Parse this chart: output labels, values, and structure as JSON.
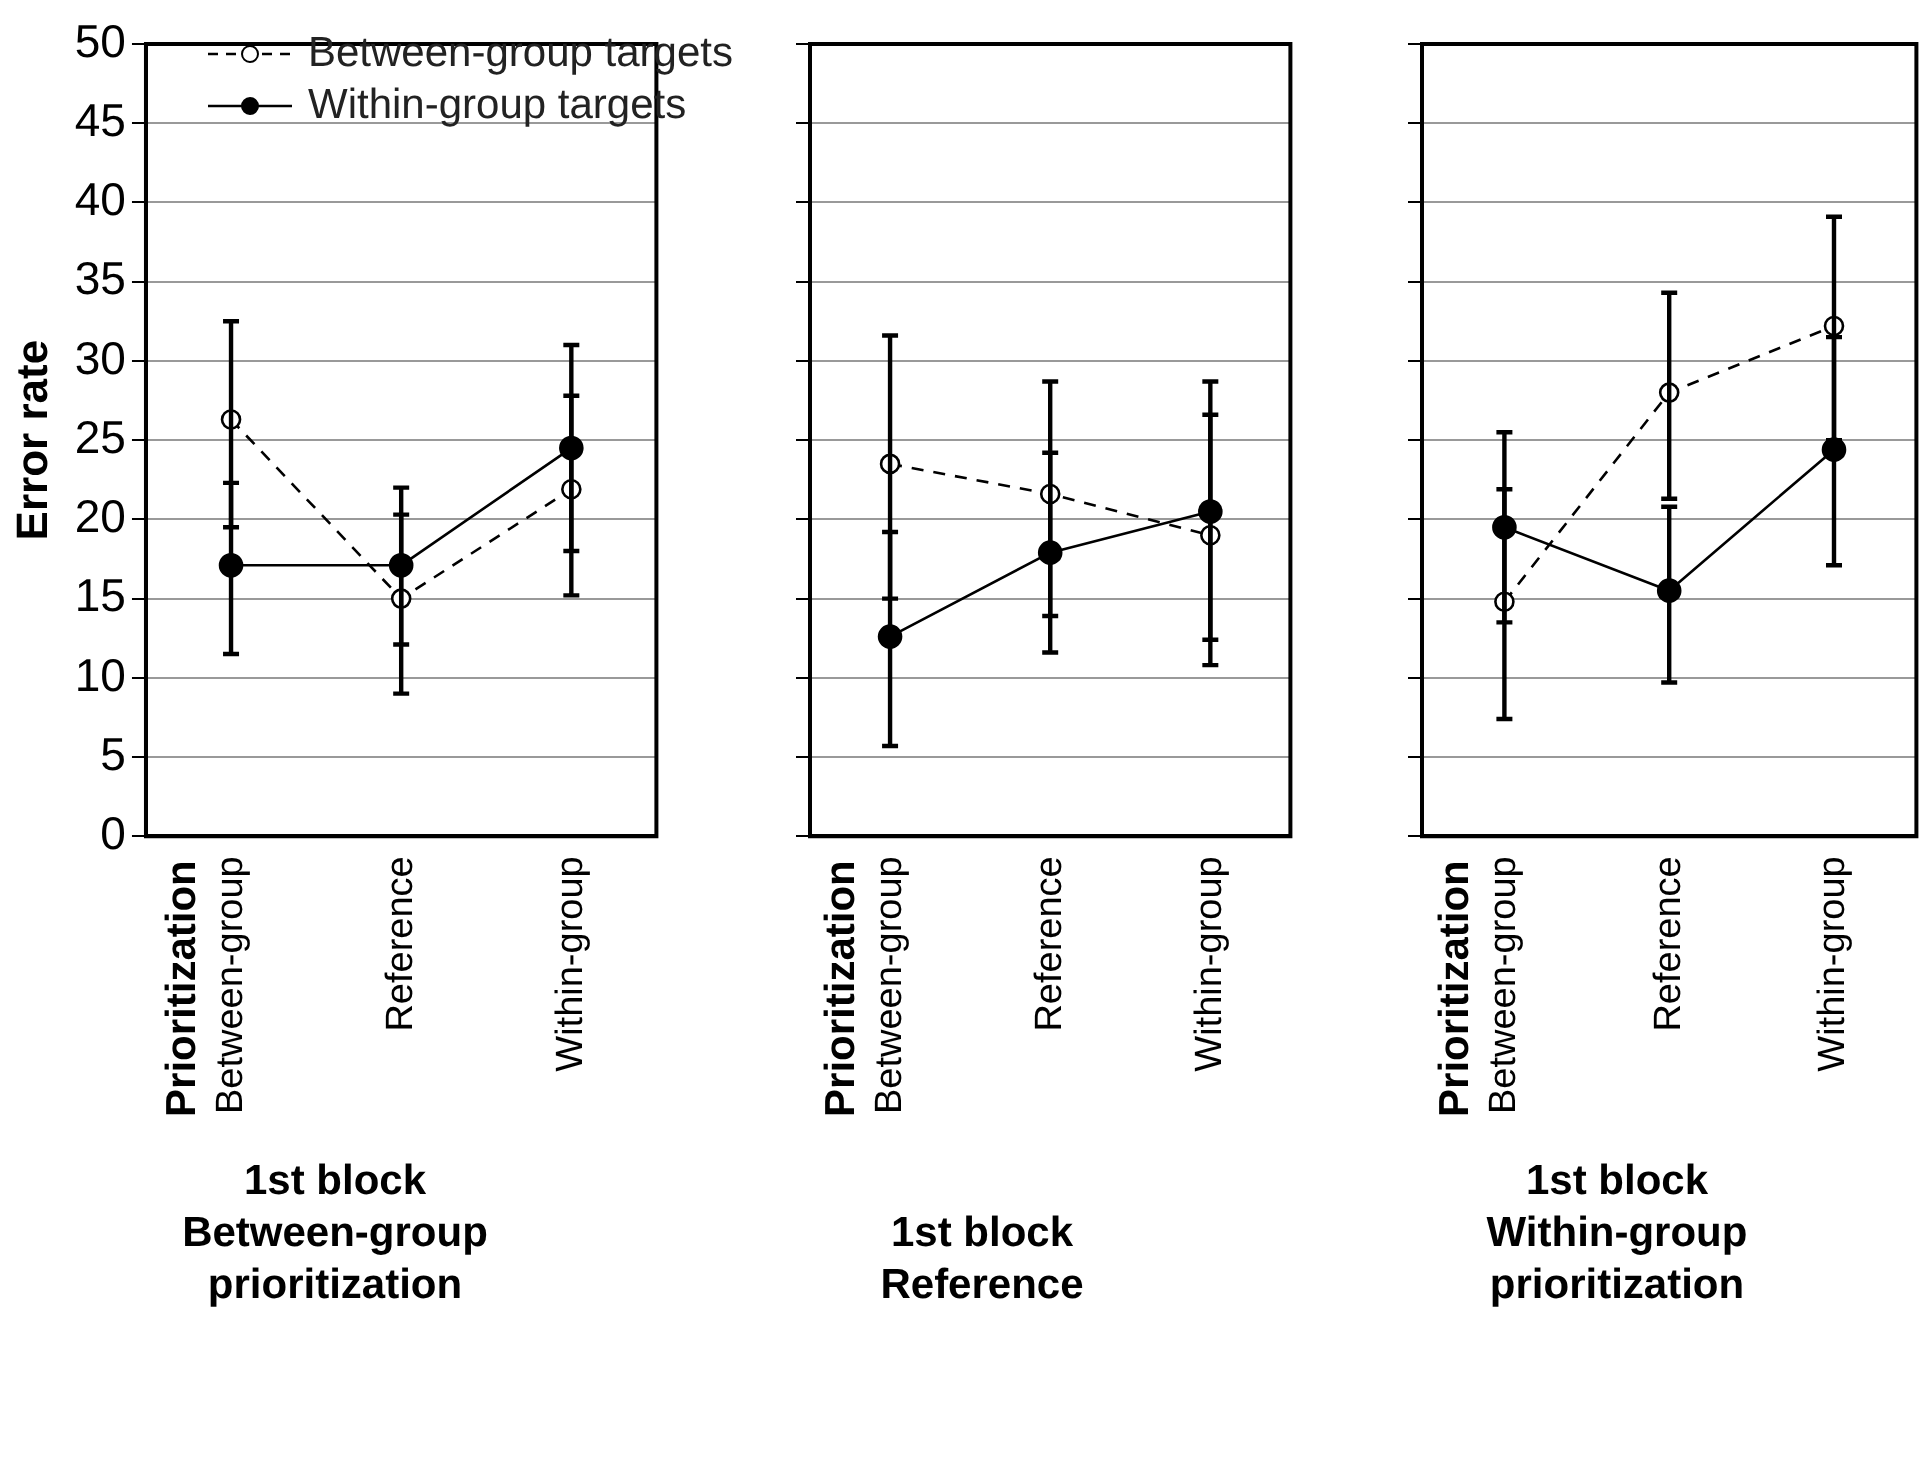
{
  "chart_data": [
    {
      "type": "line",
      "title": "1st block\nBetween-group\nprioritization",
      "annotations": [
        "Prioritization"
      ],
      "ylabel": "Error rate",
      "categories": [
        "Between-group",
        "Reference",
        "Within-group"
      ],
      "ylim": [
        0,
        50
      ],
      "yticks": [
        0,
        5,
        10,
        15,
        20,
        25,
        30,
        35,
        40,
        45,
        50
      ],
      "grid": "y",
      "legend": "top",
      "marker": "circle",
      "series": [
        {
          "name": "Between-group targets",
          "color": "#000000",
          "line_style": "dashed",
          "values": [
            26.3,
            15.0,
            21.9
          ],
          "errors": [
            [
              19.5,
              32.5
            ],
            [
              9.0,
              20.3
            ],
            [
              15.2,
              27.8
            ]
          ]
        },
        {
          "name": "Within-group targets",
          "color": "#000000",
          "line_style": "solid",
          "values": [
            17.1,
            17.1,
            24.5
          ],
          "errors": [
            [
              11.5,
              22.3
            ],
            [
              12.1,
              22.0
            ],
            [
              18.0,
              31.0
            ]
          ]
        }
      ]
    },
    {
      "type": "line",
      "title": "1st block\nReference",
      "annotations": [
        "Prioritization"
      ],
      "categories": [
        "Between-group",
        "Reference",
        "Within-group"
      ],
      "ylim": [
        0,
        50
      ],
      "yticks": [
        0,
        5,
        10,
        15,
        20,
        25,
        30,
        35,
        40,
        45,
        50
      ],
      "grid": "y",
      "tick_labels": "x",
      "marker": "circle",
      "series": [
        {
          "color": "#000000",
          "line_style": "dashed",
          "values": [
            23.5,
            21.6,
            19.0
          ],
          "errors": [
            [
              15.0,
              31.6
            ],
            [
              13.9,
              28.7
            ],
            [
              10.8,
              26.6
            ]
          ]
        },
        {
          "color": "#000000",
          "line_style": "solid",
          "values": [
            12.6,
            17.9,
            20.5
          ],
          "errors": [
            [
              5.7,
              19.2
            ],
            [
              11.6,
              24.2
            ],
            [
              12.4,
              28.7
            ]
          ]
        }
      ]
    },
    {
      "type": "line",
      "title": "1st block\nWithin-group\nprioritization",
      "annotations": [
        "Prioritization"
      ],
      "categories": [
        "Between-group",
        "Reference",
        "Within-group"
      ],
      "ylim": [
        0,
        50
      ],
      "yticks": [
        0,
        5,
        10,
        15,
        20,
        25,
        30,
        35,
        40,
        45,
        50
      ],
      "grid": "y",
      "tick_labels": "x",
      "marker": "circle",
      "series": [
        {
          "color": "#000000",
          "line_style": "dashed",
          "values": [
            14.8,
            28.0,
            32.2
          ],
          "errors": [
            [
              7.4,
              21.9
            ],
            [
              21.3,
              34.3
            ],
            [
              25.0,
              39.1
            ]
          ]
        },
        {
          "color": "#000000",
          "line_style": "solid",
          "values": [
            19.5,
            15.5,
            24.4
          ],
          "errors": [
            [
              13.5,
              25.5
            ],
            [
              9.7,
              20.8
            ],
            [
              17.1,
              31.5
            ]
          ]
        }
      ]
    }
  ]
}
